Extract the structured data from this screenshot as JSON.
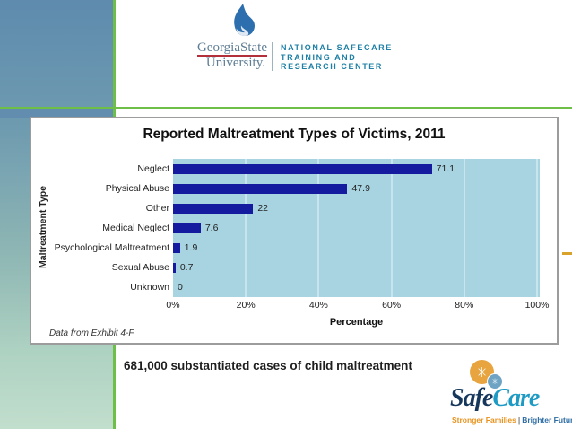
{
  "header": {
    "university": {
      "line1": "GeorgiaState",
      "line2": "University."
    },
    "center": {
      "line1": "NATIONAL SAFECARE",
      "line2": "TRAINING AND",
      "line3": "RESEARCH CENTER"
    }
  },
  "chart_data": {
    "type": "bar",
    "orientation": "horizontal",
    "title": "Reported Maltreatment Types of Victims, 2011",
    "categories": [
      "Neglect",
      "Physical Abuse",
      "Other",
      "Medical Neglect",
      "Psychological Maltreatment",
      "Sexual Abuse",
      "Unknown"
    ],
    "values": [
      71.1,
      47.9,
      22,
      7.6,
      1.9,
      0.7,
      0
    ],
    "xlabel": "Percentage",
    "ylabel": "Maltreatment Type",
    "xlim": [
      0,
      100
    ],
    "xticks": [
      "0%",
      "20%",
      "40%",
      "60%",
      "80%",
      "100%"
    ],
    "grid": true,
    "legend": "none",
    "bar_color": "#141b9e",
    "plot_bg": "#a8d3e1",
    "source_note": "Data from Exhibit 4-F"
  },
  "body": {
    "statistic": "681,000 substantiated cases of child maltreatment"
  },
  "footer_logo": {
    "brand_part1": "Safe",
    "brand_part2": "Care",
    "tagline_left": "Stronger Families",
    "tagline_divider": "|",
    "tagline_right": "Brighter Futures"
  },
  "colors": {
    "accent_green": "#6dbf47",
    "column_top": "#5e8bae",
    "column_bottom": "#c2decd",
    "orange_dash": "#d9a32a",
    "nstrc_teal": "#1e80a6",
    "safecare_navy": "#16375c",
    "safecare_teal": "#1d9bc4"
  }
}
